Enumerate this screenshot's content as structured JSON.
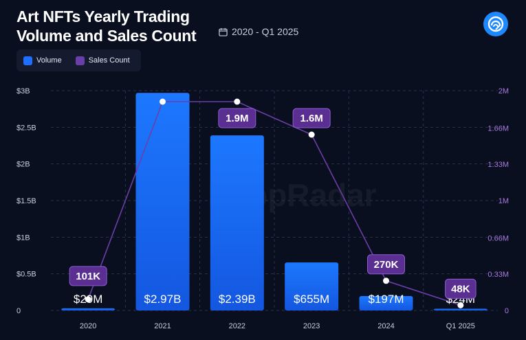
{
  "header": {
    "title": "Art NFTs Yearly Trading Volume and Sales Count",
    "date_range": "2020 - Q1 2025"
  },
  "legend": [
    {
      "label": "Volume",
      "color": "#1f6fff"
    },
    {
      "label": "Sales Count",
      "color": "#6b3fa8"
    }
  ],
  "watermark": "DappRadar",
  "chart_data": {
    "type": "bar",
    "title": "Art NFTs Yearly Trading Volume and Sales Count",
    "categories": [
      "2020",
      "2021",
      "2022",
      "2023",
      "2024",
      "Q1 2025"
    ],
    "series": [
      {
        "name": "Volume",
        "type": "bar",
        "axis": "left",
        "values": [
          29000000,
          2970000000,
          2390000000,
          655000000,
          197000000,
          24000000
        ],
        "labels": [
          "$29M",
          "$2.97B",
          "$2.39B",
          "$655M",
          "$197M",
          "$24M"
        ],
        "color": "#1f6fff"
      },
      {
        "name": "Sales Count",
        "type": "line",
        "axis": "right",
        "values": [
          101000,
          1900000,
          1900000,
          1600000,
          270000,
          48000
        ],
        "labels": [
          "101K",
          "",
          "1.9M",
          "1.6M",
          "270K",
          "48K"
        ],
        "color": "#6b3fa8"
      }
    ],
    "y_left": {
      "ylim": [
        0,
        3000000000
      ],
      "ticks": [
        0,
        500000000,
        1000000000,
        1500000000,
        2000000000,
        2500000000,
        3000000000
      ],
      "tick_labels": [
        "0",
        "$0.5B",
        "$1B",
        "$1.5B",
        "$2B",
        "$2.5B",
        "$3B"
      ]
    },
    "y_right": {
      "ylim": [
        0,
        2000000
      ],
      "ticks": [
        0,
        330000,
        660000,
        1000000,
        1330000,
        1660000,
        2000000
      ],
      "tick_labels": [
        "0",
        "0.33M",
        "0.66M",
        "1M",
        "1.33M",
        "1.66M",
        "2M"
      ]
    },
    "legend_position": "top-left"
  },
  "colors": {
    "background": "#0a0f1f",
    "accent": "#1e88ff",
    "line": "#6b3fa8"
  }
}
